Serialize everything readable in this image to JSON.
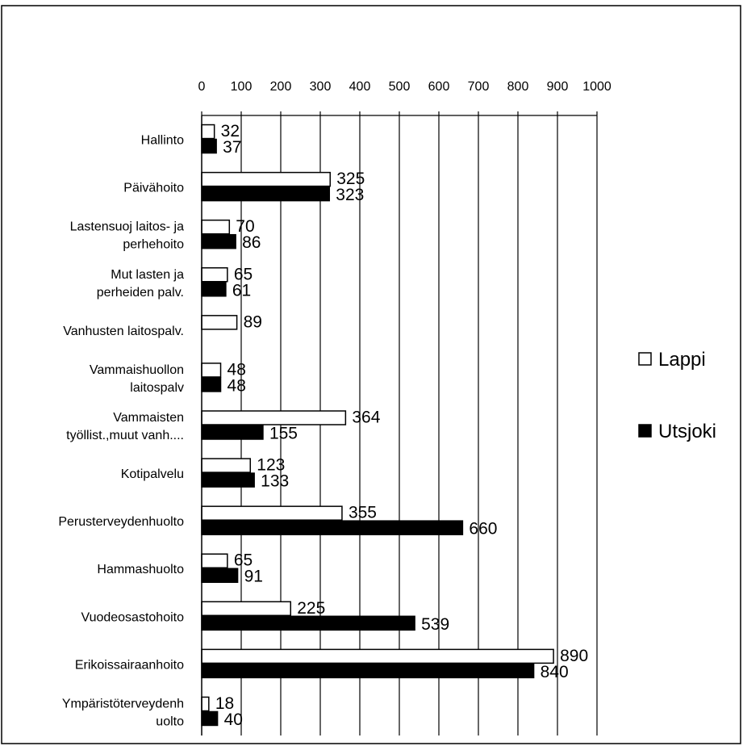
{
  "chart_data": {
    "type": "bar",
    "orientation": "horizontal",
    "title": "",
    "xlabel": "",
    "ylabel": "",
    "xlim": [
      0,
      1000
    ],
    "x_ticks": [
      0,
      100,
      200,
      300,
      400,
      500,
      600,
      700,
      800,
      900,
      1000
    ],
    "axis_position": "top",
    "grid": true,
    "legend_position": "right",
    "categories": [
      [
        "Hallinto"
      ],
      [
        "Päivähoito"
      ],
      [
        "Lastensuoj laitos- ja",
        "perhehoito"
      ],
      [
        "Mut lasten ja",
        "perheiden palv."
      ],
      [
        "Vanhusten laitospalv."
      ],
      [
        "Vammaishuollon",
        "laitospalv"
      ],
      [
        "Vammaisten",
        "työllist.,muut vanh...."
      ],
      [
        "Kotipalvelu"
      ],
      [
        "Perusterveydenhuolto"
      ],
      [
        "Hammashuolto"
      ],
      [
        "Vuodeosastohoito"
      ],
      [
        "Erikoissairaanhoito"
      ],
      [
        "Ympäristöterveydenh",
        "uolto"
      ]
    ],
    "series": [
      {
        "name": "Lappi",
        "color": "#ffffff",
        "values": [
          32,
          325,
          70,
          65,
          89,
          48,
          364,
          123,
          355,
          65,
          225,
          890,
          18
        ]
      },
      {
        "name": "Utsjoki",
        "color": "#000000",
        "values": [
          37,
          323,
          86,
          61,
          null,
          48,
          155,
          133,
          660,
          91,
          539,
          840,
          40
        ]
      }
    ]
  }
}
